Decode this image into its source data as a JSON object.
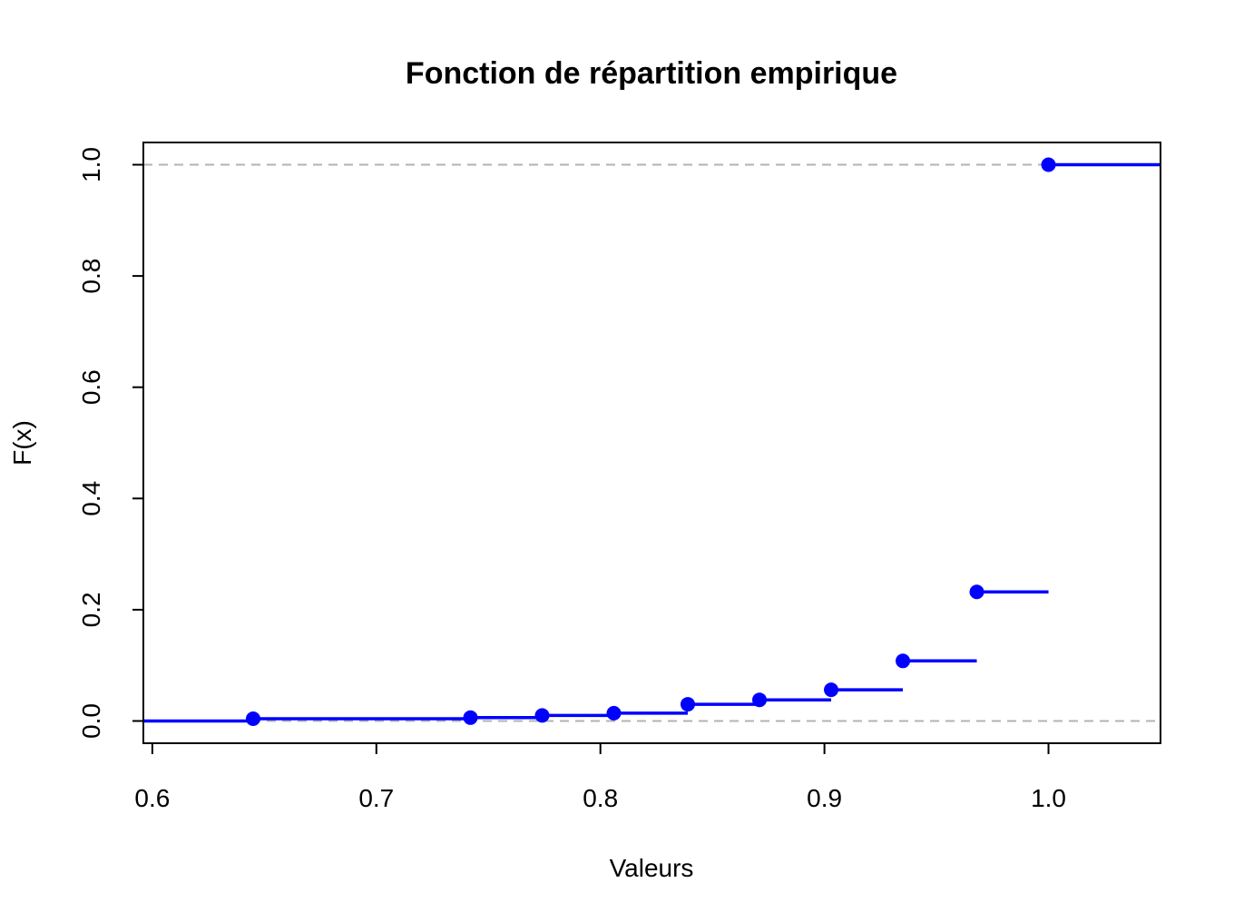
{
  "chart_data": {
    "type": "line",
    "subtype": "step",
    "title": "Fonction de répartition empirique",
    "xlabel": "Valeurs",
    "ylabel": "F(x)",
    "xlim": [
      0.596,
      1.05
    ],
    "ylim": [
      -0.04,
      1.04
    ],
    "x_ticks": [
      0.6,
      0.7,
      0.8,
      0.9,
      1.0
    ],
    "x_tick_labels": [
      "0.6",
      "0.7",
      "0.8",
      "0.9",
      "1.0"
    ],
    "y_ticks": [
      0.0,
      0.2,
      0.4,
      0.6,
      0.8,
      1.0
    ],
    "y_tick_labels": [
      "0.0",
      "0.2",
      "0.4",
      "0.6",
      "0.8",
      "1.0"
    ],
    "reference_lines": [
      0.0,
      1.0
    ],
    "grid": false,
    "legend": "none",
    "series": [
      {
        "x": [
          0.645,
          0.742,
          0.774,
          0.806,
          0.839,
          0.871,
          0.903,
          0.935,
          0.968,
          1.0
        ],
        "y": [
          0.004,
          0.006,
          0.01,
          0.014,
          0.03,
          0.038,
          0.056,
          0.108,
          0.232,
          1.0
        ]
      }
    ],
    "colors": {
      "series": "#0000ff",
      "reference": "#b3b3b3",
      "axis": "#000000"
    }
  }
}
